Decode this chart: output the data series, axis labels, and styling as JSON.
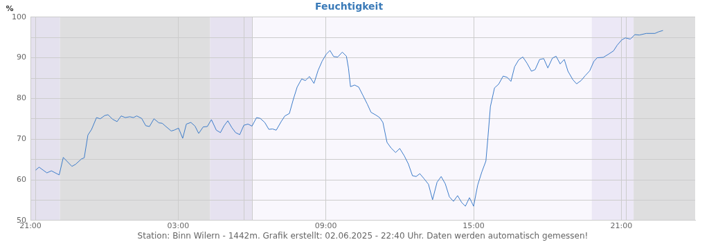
{
  "chart_data": {
    "type": "line",
    "title": "Feuchtigkeit",
    "ylabel": "%",
    "annotations": [
      "Station: Binn Wilern - 1442m. Grafik erstellt: 02.06.2025 - 22:40 Uhr. Daten werden automatisch gemessen!"
    ],
    "x": [
      "2025-06-01T21:13",
      "2025-06-01T21:21",
      "2025-06-01T21:40",
      "2025-06-01T21:51",
      "2025-06-01T22:10",
      "2025-06-01T22:20",
      "2025-06-01T22:41",
      "2025-06-01T22:50",
      "2025-06-01T23:04",
      "2025-06-01T23:11",
      "2025-06-01T23:20",
      "2025-06-01T23:29",
      "2025-06-01T23:41",
      "2025-06-01T23:50",
      "2025-06-02T00:01",
      "2025-06-02T00:09",
      "2025-06-02T00:20",
      "2025-06-02T00:31",
      "2025-06-02T00:41",
      "2025-06-02T00:51",
      "2025-06-02T01:02",
      "2025-06-02T01:11",
      "2025-06-02T01:19",
      "2025-06-02T01:31",
      "2025-06-02T01:41",
      "2025-06-02T01:50",
      "2025-06-02T02:01",
      "2025-06-02T02:13",
      "2025-06-02T02:21",
      "2025-06-02T02:29",
      "2025-06-02T02:43",
      "2025-06-02T02:50",
      "2025-06-02T03:01",
      "2025-06-02T03:11",
      "2025-06-02T03:20",
      "2025-06-02T03:31",
      "2025-06-02T03:41",
      "2025-06-02T03:50",
      "2025-06-02T04:01",
      "2025-06-02T04:11",
      "2025-06-02T04:21",
      "2025-06-02T04:33",
      "2025-06-02T04:43",
      "2025-06-02T04:52",
      "2025-06-02T05:01",
      "2025-06-02T05:11",
      "2025-06-02T05:20",
      "2025-06-02T05:30",
      "2025-06-02T05:40",
      "2025-06-02T05:50",
      "2025-06-02T06:00",
      "2025-06-02T06:11",
      "2025-06-02T06:20",
      "2025-06-02T06:31",
      "2025-06-02T06:41",
      "2025-06-02T06:50",
      "2025-06-02T06:59",
      "2025-06-02T07:11",
      "2025-06-02T07:20",
      "2025-06-02T07:31",
      "2025-06-02T07:41",
      "2025-06-02T07:50",
      "2025-06-02T08:01",
      "2025-06-02T08:10",
      "2025-06-02T08:20",
      "2025-06-02T08:31",
      "2025-06-02T08:41",
      "2025-06-02T08:51",
      "2025-06-02T09:01",
      "2025-06-02T09:10",
      "2025-06-02T09:19",
      "2025-06-02T09:29",
      "2025-06-02T09:40",
      "2025-06-02T09:50",
      "2025-06-02T09:55",
      "2025-06-02T10:00",
      "2025-06-02T10:10",
      "2025-06-02T10:20",
      "2025-06-02T10:30",
      "2025-06-02T10:41",
      "2025-06-02T10:50",
      "2025-06-02T11:02",
      "2025-06-02T11:11",
      "2025-06-02T11:19",
      "2025-06-02T11:29",
      "2025-06-02T11:39",
      "2025-06-02T11:50",
      "2025-06-02T12:00",
      "2025-06-02T12:11",
      "2025-06-02T12:21",
      "2025-06-02T12:31",
      "2025-06-02T12:40",
      "2025-06-02T12:49",
      "2025-06-02T12:59",
      "2025-06-02T13:10",
      "2025-06-02T13:20",
      "2025-06-02T13:31",
      "2025-06-02T13:41",
      "2025-06-02T13:51",
      "2025-06-02T14:01",
      "2025-06-02T14:11",
      "2025-06-02T14:21",
      "2025-06-02T14:31",
      "2025-06-02T14:40",
      "2025-06-02T14:50",
      "2025-06-02T15:00",
      "2025-06-02T15:10",
      "2025-06-02T15:20",
      "2025-06-02T15:30",
      "2025-06-02T15:35",
      "2025-06-02T15:41",
      "2025-06-02T15:51",
      "2025-06-02T16:01",
      "2025-06-02T16:12",
      "2025-06-02T16:22",
      "2025-06-02T16:31",
      "2025-06-02T16:40",
      "2025-06-02T16:50",
      "2025-06-02T17:00",
      "2025-06-02T17:10",
      "2025-06-02T17:21",
      "2025-06-02T17:30",
      "2025-06-02T17:41",
      "2025-06-02T17:51",
      "2025-06-02T18:01",
      "2025-06-02T18:12",
      "2025-06-02T18:21",
      "2025-06-02T18:31",
      "2025-06-02T18:41",
      "2025-06-02T18:50",
      "2025-06-02T19:02",
      "2025-06-02T19:11",
      "2025-06-02T19:22",
      "2025-06-02T19:32",
      "2025-06-02T19:43",
      "2025-06-02T19:53",
      "2025-06-02T20:01",
      "2025-06-02T20:16",
      "2025-06-02T20:29",
      "2025-06-02T20:41",
      "2025-06-02T20:50",
      "2025-06-02T21:01",
      "2025-06-02T21:10",
      "2025-06-02T21:22",
      "2025-06-02T21:33",
      "2025-06-02T21:44",
      "2025-06-02T22:01",
      "2025-06-02T22:22",
      "2025-06-02T22:31",
      "2025-06-02T22:41"
    ],
    "series": [
      {
        "color": "#3d7cc9",
        "values": [
          62.4,
          63.1,
          61.7,
          62.2,
          61.2,
          65.5,
          63.3,
          63.8,
          65.1,
          65.4,
          71.0,
          72.4,
          75.3,
          75.0,
          75.8,
          76.0,
          74.9,
          74.3,
          75.7,
          75.3,
          75.5,
          75.3,
          75.7,
          75.1,
          73.3,
          73.1,
          75.0,
          74.0,
          73.9,
          73.2,
          72.0,
          72.2,
          72.7,
          70.2,
          73.7,
          74.1,
          73.2,
          71.4,
          73.0,
          73.1,
          74.8,
          72.2,
          71.6,
          73.3,
          74.5,
          72.8,
          71.6,
          71.1,
          73.4,
          73.7,
          73.2,
          75.3,
          75.1,
          74.1,
          72.4,
          72.5,
          72.2,
          74.3,
          75.7,
          76.3,
          79.9,
          82.8,
          84.8,
          84.4,
          85.4,
          83.7,
          86.9,
          89.2,
          90.9,
          91.8,
          90.3,
          90.2,
          91.4,
          90.4,
          87.5,
          82.9,
          83.3,
          82.8,
          80.8,
          78.6,
          76.6,
          75.9,
          75.3,
          74.1,
          69.2,
          67.8,
          66.7,
          67.7,
          65.9,
          63.9,
          61.0,
          60.8,
          61.5,
          60.3,
          58.9,
          55.1,
          59.4,
          60.8,
          59.0,
          55.8,
          54.7,
          56.1,
          54.4,
          53.5,
          55.6,
          53.5,
          58.7,
          61.9,
          64.6,
          70.5,
          78.0,
          82.6,
          83.5,
          85.5,
          85.2,
          84.2,
          87.8,
          89.5,
          90.2,
          88.7,
          86.7,
          87.1,
          89.6,
          89.8,
          87.5,
          89.9,
          90.4,
          88.5,
          89.6,
          86.7,
          84.6,
          83.6,
          84.4,
          85.6,
          86.8,
          89.1,
          90.0,
          90.1,
          90.9,
          91.7,
          93.1,
          94.4,
          94.9,
          94.6,
          95.7,
          95.6,
          96.0,
          96.0,
          96.4,
          96.7
        ]
      }
    ],
    "xlim": [
      "2025-06-01T21:00",
      "2025-06-03T00:00"
    ],
    "xticks": [
      {
        "value": "2025-06-01T21:00",
        "label": "21:00"
      },
      {
        "value": "2025-06-02T03:00",
        "label": "03:00"
      },
      {
        "value": "2025-06-02T09:00",
        "label": "09:00"
      },
      {
        "value": "2025-06-02T15:00",
        "label": "15:00"
      },
      {
        "value": "2025-06-02T21:00",
        "label": "21:00"
      }
    ],
    "ylim": [
      50,
      100
    ],
    "yticks": [
      50,
      {
        "value": 55,
        "label": null
      },
      60,
      {
        "value": 65,
        "label": null
      },
      70,
      {
        "value": 75,
        "label": null
      },
      80,
      {
        "value": 85,
        "label": null
      },
      90,
      {
        "value": 95,
        "label": null
      },
      100
    ],
    "bands": [
      {
        "axis": "x",
        "from": "2025-06-01T21:00",
        "to": "2025-06-01T22:12",
        "color": "#e4e1ee"
      },
      {
        "axis": "x",
        "from": "2025-06-01T22:12",
        "to": "2025-06-02T04:18",
        "color": "#dededf"
      },
      {
        "axis": "x",
        "from": "2025-06-02T04:18",
        "to": "2025-06-02T06:00",
        "color": "#e6e2f0"
      },
      {
        "axis": "x",
        "from": "2025-06-02T06:00",
        "to": "2025-06-02T19:48",
        "color": "#f9f7fd"
      },
      {
        "axis": "x",
        "from": "2025-06-02T19:48",
        "to": "2025-06-02T21:30",
        "color": "#ece8f6"
      },
      {
        "axis": "x",
        "from": "2025-06-02T21:30",
        "to": "2025-06-03T00:00",
        "color": "#dededf"
      }
    ],
    "ref_lines": [
      {
        "axis": "x",
        "value": "2025-06-01T21:12",
        "color": "#cccccc"
      },
      {
        "axis": "x",
        "value": "2025-06-02T05:39",
        "color": "#cccccc"
      },
      {
        "axis": "x",
        "value": "2025-06-02T06:00",
        "color": "#cccccc"
      },
      {
        "axis": "x",
        "value": "2025-06-02T21:12",
        "color": "#cccccc"
      }
    ],
    "grid": true,
    "legend": false,
    "marker": "none",
    "line_style": "solid"
  }
}
